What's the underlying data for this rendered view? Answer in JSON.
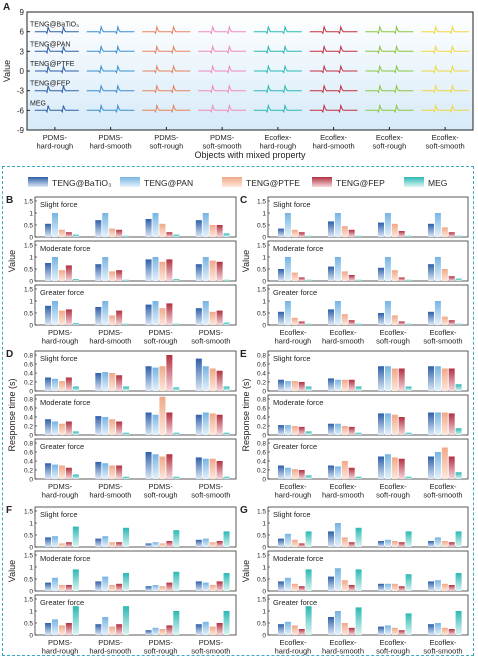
{
  "colors": {
    "batio3": "#2f5fa8",
    "pan": "#76b4e2",
    "ptfe": "#f0a888",
    "fep": "#b23040",
    "meg": "#2bb9b4",
    "grid_bg": "#d8ecf8",
    "dash_border": "#3aa8c8"
  },
  "legend": [
    "TENG@BaTiO3",
    "TENG@PAN",
    "TENG@PTFE",
    "TENG@FEP",
    "MEG"
  ],
  "chart_data": [
    {
      "panel": "A",
      "type": "line",
      "xlabel": "Objects with mixed property",
      "ylabel": "Value",
      "ylim": [
        -9,
        9
      ],
      "yticks": [
        -9,
        -6,
        -3,
        0,
        3,
        6,
        9
      ],
      "categories": [
        "PDMS-\nhard-rough",
        "PDMS-\nhard-smooth",
        "PDMS-\nsoft-rough",
        "PDMS-\nsoft-smooth",
        "Ecoflex-\nhard-rough",
        "Ecoflex-\nhard-smooth",
        "Ecoflex-\nsoft-rough",
        "Ecoflex-\nsoft-smooth"
      ],
      "row_labels": [
        "TENG@BaTiO₃",
        "TENG@PAN",
        "TENG@PTFE",
        "TENG@FEP",
        "MEG"
      ],
      "row_offsets": [
        6,
        3,
        0,
        -3,
        -6
      ],
      "series_colors": [
        "#2f5fa8",
        "#3a8fd0",
        "#e8825e",
        "#f08ac0",
        "#2bb9b4",
        "#c23040",
        "#8cc63f",
        "#f2d640"
      ]
    },
    {
      "panel": "B",
      "type": "bar",
      "ylabel": "Value",
      "ylim": [
        0,
        1.5
      ],
      "yticks": [
        0,
        0.5,
        1,
        1.5
      ],
      "categories": [
        "PDMS-\nhard-rough",
        "PDMS-\nhard-smooth",
        "PDMS-\nsoft-rough",
        "PDMS-\nsoft-smooth"
      ],
      "subplots": [
        {
          "title": "Slight force",
          "values": [
            [
              0.55,
              1.0,
              0.3,
              0.2,
              0.1
            ],
            [
              0.7,
              1.0,
              0.35,
              0.3,
              0.05
            ],
            [
              0.75,
              1.0,
              0.55,
              0.2,
              0.1
            ],
            [
              0.7,
              1.0,
              0.5,
              0.5,
              0.15
            ]
          ]
        },
        {
          "title": "Moderate force",
          "values": [
            [
              0.75,
              1.0,
              0.45,
              0.65,
              0.08
            ],
            [
              0.7,
              1.0,
              0.4,
              0.45,
              0.05
            ],
            [
              0.9,
              1.0,
              0.8,
              0.9,
              0.08
            ],
            [
              0.7,
              1.0,
              0.85,
              0.8,
              0.05
            ]
          ]
        },
        {
          "title": "Greater force",
          "values": [
            [
              0.8,
              1.0,
              0.6,
              0.65,
              0.08
            ],
            [
              0.75,
              1.0,
              0.4,
              0.6,
              0.05
            ],
            [
              0.85,
              1.0,
              0.7,
              0.9,
              0.05
            ],
            [
              0.7,
              1.0,
              0.55,
              0.6,
              0.1
            ]
          ]
        }
      ]
    },
    {
      "panel": "C",
      "type": "bar",
      "ylabel": "Value",
      "ylim": [
        0,
        1.5
      ],
      "yticks": [
        0,
        0.5,
        1,
        1.5
      ],
      "categories": [
        "Ecoflex-\nhard-rough",
        "Ecoflex-\nhard-smooth",
        "Ecoflex-\nsoft-rough",
        "Ecoflex-\nsoft-smooth"
      ],
      "subplots": [
        {
          "title": "Slight force",
          "values": [
            [
              0.35,
              1.0,
              0.3,
              0.2,
              0.05
            ],
            [
              0.65,
              1.0,
              0.45,
              0.3,
              0.05
            ],
            [
              0.6,
              1.0,
              0.55,
              0.25,
              0.05
            ],
            [
              0.55,
              1.0,
              0.4,
              0.2,
              0.05
            ]
          ]
        },
        {
          "title": "Moderate force",
          "values": [
            [
              0.5,
              1.0,
              0.35,
              0.15,
              0.05
            ],
            [
              0.6,
              1.0,
              0.4,
              0.25,
              0.05
            ],
            [
              0.55,
              1.0,
              0.45,
              0.15,
              0.05
            ],
            [
              0.7,
              1.0,
              0.5,
              0.2,
              0.1
            ]
          ]
        },
        {
          "title": "Greater force",
          "values": [
            [
              0.55,
              1.0,
              0.3,
              0.15,
              0.05
            ],
            [
              0.65,
              1.0,
              0.45,
              0.2,
              0.05
            ],
            [
              0.5,
              1.0,
              0.4,
              0.15,
              0.05
            ],
            [
              0.55,
              1.0,
              0.35,
              0.2,
              0.05
            ]
          ]
        }
      ]
    },
    {
      "panel": "D",
      "type": "bar",
      "ylabel": "Response time (s)",
      "ylim": [
        0,
        0.8
      ],
      "yticks": [
        0,
        0.2,
        0.4,
        0.6,
        0.8
      ],
      "categories": [
        "PDMS-\nhard-rough",
        "PDMS-\nhard-smooth",
        "PDMS-\nsoft-rough",
        "PDMS-\nsoft-smooth"
      ],
      "subplots": [
        {
          "title": "Slight force",
          "values": [
            [
              0.3,
              0.27,
              0.22,
              0.3,
              0.1
            ],
            [
              0.4,
              0.42,
              0.4,
              0.35,
              0.1
            ],
            [
              0.55,
              0.52,
              0.55,
              0.8,
              0.08
            ],
            [
              0.72,
              0.55,
              0.5,
              0.45,
              0.1
            ]
          ]
        },
        {
          "title": "Moderate force",
          "values": [
            [
              0.35,
              0.3,
              0.25,
              0.3,
              0.08
            ],
            [
              0.42,
              0.4,
              0.35,
              0.3,
              0.05
            ],
            [
              0.5,
              0.45,
              0.85,
              0.5,
              0.05
            ],
            [
              0.45,
              0.5,
              0.48,
              0.45,
              0.05
            ]
          ]
        },
        {
          "title": "Greater force",
          "values": [
            [
              0.35,
              0.32,
              0.3,
              0.25,
              0.1
            ],
            [
              0.38,
              0.35,
              0.3,
              0.3,
              0.05
            ],
            [
              0.6,
              0.55,
              0.5,
              0.55,
              0.05
            ],
            [
              0.48,
              0.45,
              0.45,
              0.4,
              0.05
            ]
          ]
        }
      ]
    },
    {
      "panel": "E",
      "type": "bar",
      "ylabel": "Response time (s)",
      "ylim": [
        0,
        0.8
      ],
      "yticks": [
        0,
        0.2,
        0.4,
        0.6,
        0.8
      ],
      "categories": [
        "Ecoflex-\nhard-rough",
        "Ecoflex-\nhard-smooth",
        "Ecoflex-\nsoft-rough",
        "Ecoflex-\nsoft-smooth"
      ],
      "subplots": [
        {
          "title": "Slight force",
          "values": [
            [
              0.25,
              0.22,
              0.22,
              0.2,
              0.1
            ],
            [
              0.28,
              0.25,
              0.25,
              0.25,
              0.1
            ],
            [
              0.55,
              0.55,
              0.5,
              0.5,
              0.1
            ],
            [
              0.55,
              0.55,
              0.5,
              0.5,
              0.15
            ]
          ]
        },
        {
          "title": "Moderate force",
          "values": [
            [
              0.22,
              0.22,
              0.2,
              0.18,
              0.08
            ],
            [
              0.25,
              0.25,
              0.2,
              0.18,
              0.05
            ],
            [
              0.48,
              0.48,
              0.45,
              0.4,
              0.05
            ],
            [
              0.5,
              0.5,
              0.5,
              0.48,
              0.15
            ]
          ]
        },
        {
          "title": "Greater force",
          "values": [
            [
              0.3,
              0.25,
              0.22,
              0.2,
              0.08
            ],
            [
              0.3,
              0.28,
              0.4,
              0.25,
              0.05
            ],
            [
              0.5,
              0.55,
              0.48,
              0.45,
              0.05
            ],
            [
              0.5,
              0.6,
              0.7,
              0.5,
              0.15
            ]
          ]
        }
      ]
    },
    {
      "panel": "F",
      "type": "bar",
      "ylabel": "Value",
      "ylim": [
        0,
        1.5
      ],
      "yticks": [
        0,
        0.5,
        1,
        1.5
      ],
      "categories": [
        "PDMS-\nhard-rough",
        "PDMS-\nhard-smooth",
        "PDMS-\nsoft-rough",
        "PDMS-\nsoft-smooth"
      ],
      "subplots": [
        {
          "title": "Slight force",
          "values": [
            [
              0.4,
              0.45,
              0.15,
              0.2,
              0.85
            ],
            [
              0.35,
              0.45,
              0.2,
              0.2,
              0.8
            ],
            [
              0.15,
              0.2,
              0.15,
              0.25,
              0.7
            ],
            [
              0.3,
              0.35,
              0.2,
              0.25,
              0.65
            ]
          ]
        },
        {
          "title": "Moderate force",
          "values": [
            [
              0.35,
              0.55,
              0.25,
              0.25,
              0.9
            ],
            [
              0.4,
              0.6,
              0.25,
              0.3,
              0.75
            ],
            [
              0.2,
              0.25,
              0.2,
              0.35,
              0.8
            ],
            [
              0.4,
              0.35,
              0.25,
              0.4,
              0.75
            ]
          ]
        },
        {
          "title": "Greater force",
          "values": [
            [
              0.5,
              0.65,
              0.4,
              0.5,
              1.2
            ],
            [
              0.45,
              0.75,
              0.35,
              0.45,
              1.2
            ],
            [
              0.2,
              0.3,
              0.25,
              0.4,
              1.0
            ],
            [
              0.45,
              0.55,
              0.35,
              0.5,
              1.0
            ]
          ]
        }
      ]
    },
    {
      "panel": "G",
      "type": "bar",
      "ylabel": "Value",
      "ylim": [
        0,
        1.5
      ],
      "yticks": [
        0,
        0.5,
        1,
        1.5
      ],
      "categories": [
        "Ecoflex-\nhard-rough",
        "Ecoflex-\nhard-smooth",
        "Ecoflex-\nsoft-rough",
        "Ecoflex-\nsoft-smooth"
      ],
      "subplots": [
        {
          "title": "Slight force",
          "values": [
            [
              0.35,
              0.55,
              0.3,
              0.15,
              0.65
            ],
            [
              0.65,
              1.0,
              0.4,
              0.2,
              0.8
            ],
            [
              0.25,
              0.3,
              0.25,
              0.2,
              0.65
            ],
            [
              0.25,
              0.4,
              0.25,
              0.2,
              0.65
            ]
          ]
        },
        {
          "title": "Moderate force",
          "values": [
            [
              0.4,
              0.55,
              0.3,
              0.2,
              0.9
            ],
            [
              0.6,
              0.95,
              0.45,
              0.25,
              0.9
            ],
            [
              0.3,
              0.3,
              0.3,
              0.2,
              0.7
            ],
            [
              0.4,
              0.45,
              0.3,
              0.25,
              0.75
            ]
          ]
        },
        {
          "title": "Greater force",
          "values": [
            [
              0.45,
              0.55,
              0.4,
              0.25,
              1.2
            ],
            [
              0.75,
              1.0,
              0.5,
              0.3,
              1.15
            ],
            [
              0.35,
              0.4,
              0.3,
              0.2,
              0.9
            ],
            [
              0.45,
              0.5,
              0.3,
              0.25,
              1.0
            ]
          ]
        }
      ]
    }
  ]
}
